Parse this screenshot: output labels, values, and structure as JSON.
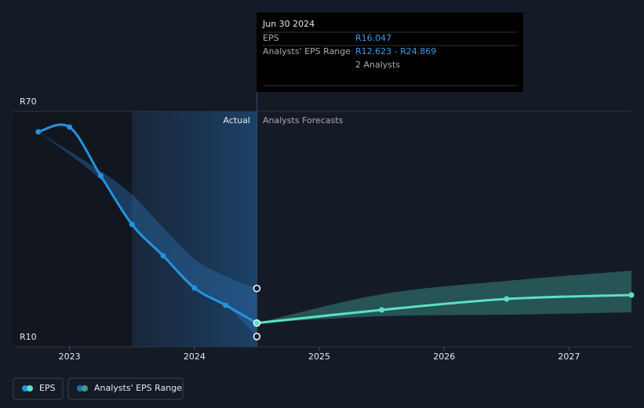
{
  "chart_data": {
    "type": "line",
    "xlim": [
      2022.55,
      2027.5
    ],
    "xticks": [
      {
        "value": 2023,
        "label": "2023"
      },
      {
        "value": 2024,
        "label": "2024"
      },
      {
        "value": 2025,
        "label": "2025"
      },
      {
        "value": 2026,
        "label": "2026"
      },
      {
        "value": 2027,
        "label": "2027"
      }
    ],
    "ylim": [
      10,
      70
    ],
    "yticks": [
      {
        "value": 10,
        "label": "R10"
      },
      {
        "value": 70,
        "label": "R70"
      }
    ],
    "grid": true,
    "section_labels": [
      "Actual",
      "Analysts Forecasts"
    ],
    "series": [
      {
        "name": "EPS",
        "color": "#2394df",
        "x": [
          2022.75,
          2023.0,
          2023.25,
          2023.5,
          2023.75,
          2024.0,
          2024.25,
          2024.5
        ],
        "values": [
          64.8,
          66.0,
          53.6,
          41.2,
          33.2,
          25.0,
          20.6,
          16.047
        ]
      },
      {
        "name": "EPS",
        "color": "#5ce1c6",
        "x": [
          2024.5,
          2025.5,
          2026.5,
          2027.5
        ],
        "values": [
          16.047,
          19.4,
          22.2,
          23.2
        ]
      }
    ],
    "ranges": [
      {
        "name": "Analysts' EPS Range",
        "color": "#2a6ba8",
        "x": [
          2022.75,
          2023.25,
          2023.5,
          2023.75,
          2024.0,
          2024.25,
          2024.5
        ],
        "high": [
          64.8,
          54.8,
          48.8,
          40.4,
          32.4,
          28.0,
          24.869
        ],
        "low": [
          64.8,
          52.6,
          41.2,
          33.2,
          25.0,
          20.6,
          12.623
        ]
      },
      {
        "name": "Analysts' EPS Range",
        "color": "#3e9c90",
        "x": [
          2024.5,
          2025.5,
          2026.5,
          2027.5
        ],
        "high": [
          16.047,
          23.4,
          26.8,
          29.4
        ],
        "low": [
          16.047,
          17.8,
          18.2,
          18.8
        ]
      }
    ],
    "tooltip": {
      "date": "Jun 30 2024",
      "rows": [
        {
          "label": "EPS",
          "value": "R16.047"
        },
        {
          "label": "Analysts' EPS Range",
          "value": "R12.623 - R24.869"
        }
      ],
      "analysts": "2 Analysts"
    }
  }
}
